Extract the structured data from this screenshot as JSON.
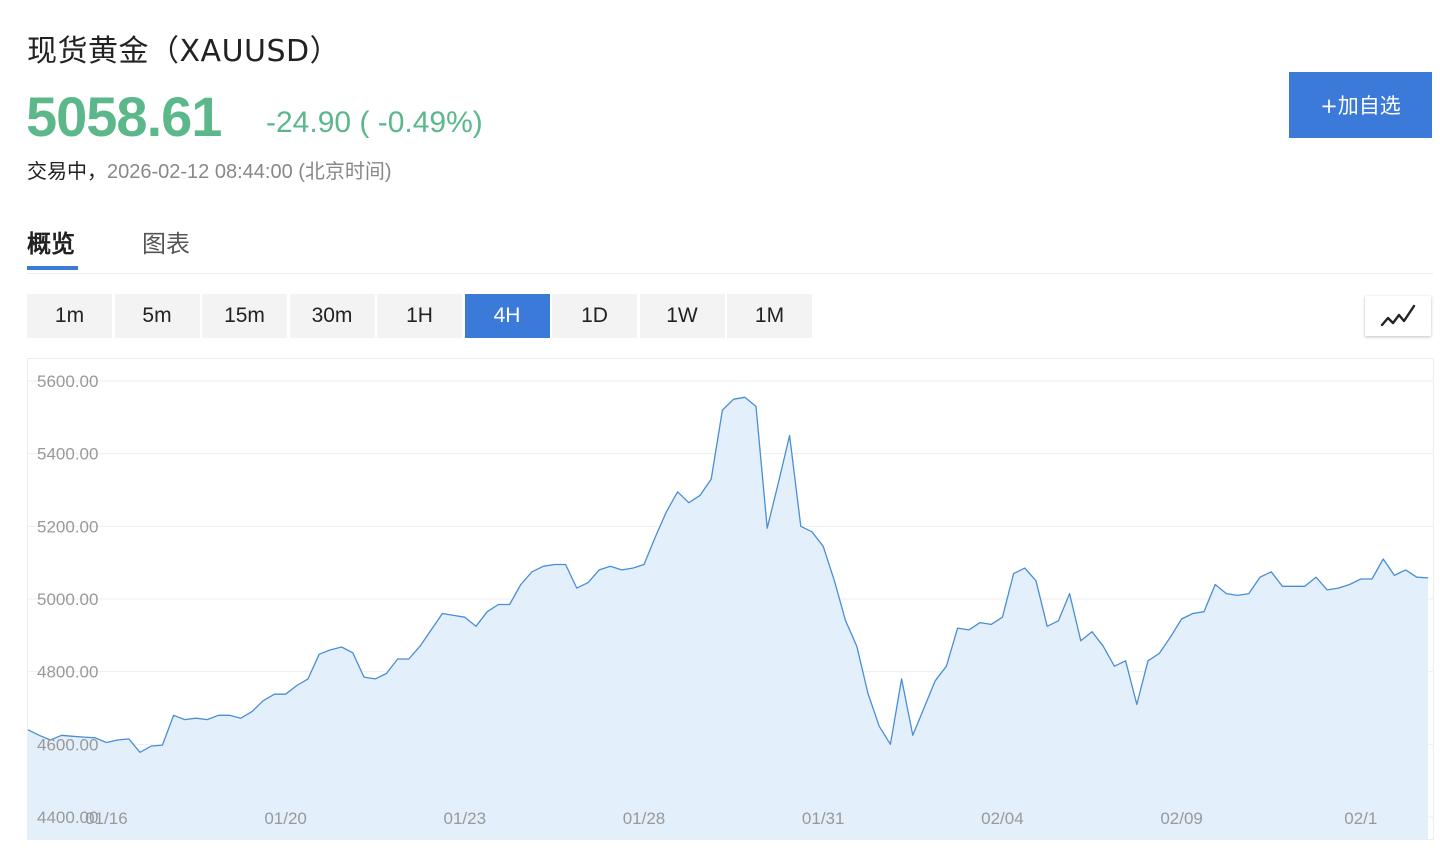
{
  "header": {
    "title": "现货黄金（XAUUSD）",
    "price": "5058.61",
    "change": "-24.90 ( -0.49%)",
    "status": "交易中，",
    "timestamp": "2026-02-12 08:44:00 (北京时间)",
    "add_label": "+加自选"
  },
  "tabs": [
    {
      "label": "概览",
      "active": true
    },
    {
      "label": "图表",
      "active": false
    }
  ],
  "periods": [
    "1m",
    "5m",
    "15m",
    "30m",
    "1H",
    "4H",
    "1D",
    "1W",
    "1M"
  ],
  "active_period": "4H",
  "colors": {
    "up_down": "#5cb88b",
    "accent": "#3b7ad9",
    "line": "#4a8ed4",
    "fill": "#e3effb"
  },
  "chart_type_icon": "line-chart-icon",
  "chart_data": {
    "type": "area",
    "y_ticks": [
      "5600.00",
      "5400.00",
      "5200.00",
      "5000.00",
      "4800.00",
      "4600.00",
      "4400.00"
    ],
    "ylim": [
      4400,
      5600
    ],
    "x_ticks": [
      {
        "label": "01/16",
        "index": 7
      },
      {
        "label": "01/20",
        "index": 23
      },
      {
        "label": "01/23",
        "index": 39
      },
      {
        "label": "01/28",
        "index": 55
      },
      {
        "label": "01/31",
        "index": 71
      },
      {
        "label": "02/04",
        "index": 87
      },
      {
        "label": "02/09",
        "index": 103
      },
      {
        "label": "02/1",
        "index": 119
      }
    ],
    "values": [
      4640,
      4625,
      4612,
      4625,
      4622,
      4620,
      4618,
      4605,
      4612,
      4615,
      4578,
      4595,
      4598,
      4680,
      4668,
      4672,
      4668,
      4680,
      4680,
      4672,
      4690,
      4720,
      4738,
      4738,
      4762,
      4780,
      4848,
      4860,
      4868,
      4852,
      4785,
      4780,
      4795,
      4835,
      4835,
      4870,
      4915,
      4960,
      4955,
      4950,
      4925,
      4965,
      4985,
      4985,
      5040,
      5075,
      5090,
      5095,
      5095,
      5030,
      5045,
      5080,
      5090,
      5080,
      5085,
      5095,
      5170,
      5240,
      5295,
      5265,
      5285,
      5330,
      5520,
      5550,
      5555,
      5530,
      5195,
      5320,
      5450,
      5200,
      5185,
      5145,
      5050,
      4940,
      4870,
      4740,
      4650,
      4600,
      4780,
      4625,
      4700,
      4775,
      4815,
      4920,
      4915,
      4935,
      4930,
      4950,
      5070,
      5085,
      5050,
      4925,
      4940,
      5015,
      4885,
      4910,
      4870,
      4815,
      4830,
      4710,
      4830,
      4850,
      4895,
      4945,
      4960,
      4965,
      5040,
      5015,
      5010,
      5015,
      5060,
      5075,
      5035,
      5035,
      5035,
      5060,
      5025,
      5030,
      5040,
      5055,
      5055,
      5110,
      5065,
      5080,
      5060,
      5058
    ]
  }
}
